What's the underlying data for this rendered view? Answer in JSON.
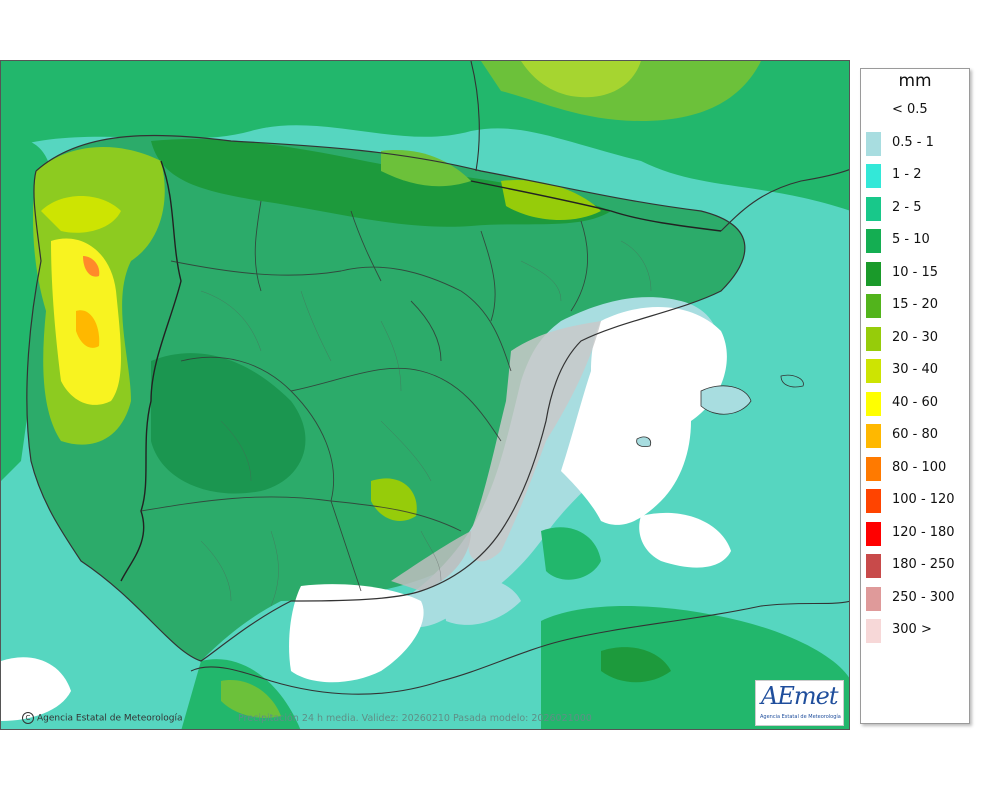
{
  "legend": {
    "title": "mm",
    "items": [
      {
        "label": "< 0.5",
        "color": ""
      },
      {
        "label": "0.5 - 1",
        "color": "#a8dde0"
      },
      {
        "label": "1 - 2",
        "color": "#33e8d8"
      },
      {
        "label": "2 - 5",
        "color": "#18c88a"
      },
      {
        "label": "5 - 10",
        "color": "#14ae52"
      },
      {
        "label": "10 - 15",
        "color": "#1a9a2a"
      },
      {
        "label": "15 - 20",
        "color": "#52b41c"
      },
      {
        "label": "20 - 30",
        "color": "#96cc0a"
      },
      {
        "label": "30 - 40",
        "color": "#cde402"
      },
      {
        "label": "40 - 60",
        "color": "#ffff00"
      },
      {
        "label": "60 - 80",
        "color": "#ffb800"
      },
      {
        "label": "80 - 100",
        "color": "#ff7a00"
      },
      {
        "label": "100 - 120",
        "color": "#ff4400"
      },
      {
        "label": "120 - 180",
        "color": "#ff0000"
      },
      {
        "label": "180 - 250",
        "color": "#c84a4a"
      },
      {
        "label": "250 - 300",
        "color": "#df9a9a"
      },
      {
        "label": "300 >",
        "color": "#f7d8d8"
      }
    ]
  },
  "credit": "Agencia Estatal de Meteorología",
  "footer": "Precipitación 24 h media. Validez: 20260210 Pasada modelo: 2026021000",
  "logo": {
    "main": "AEmet",
    "sub": "Agencia Estatal de Meteorología"
  },
  "colors": {
    "sea_base": "#56d6c0",
    "land_green": "#2cab6a",
    "dry_white": "#ffffff",
    "light_blue": "#a8dde0"
  }
}
